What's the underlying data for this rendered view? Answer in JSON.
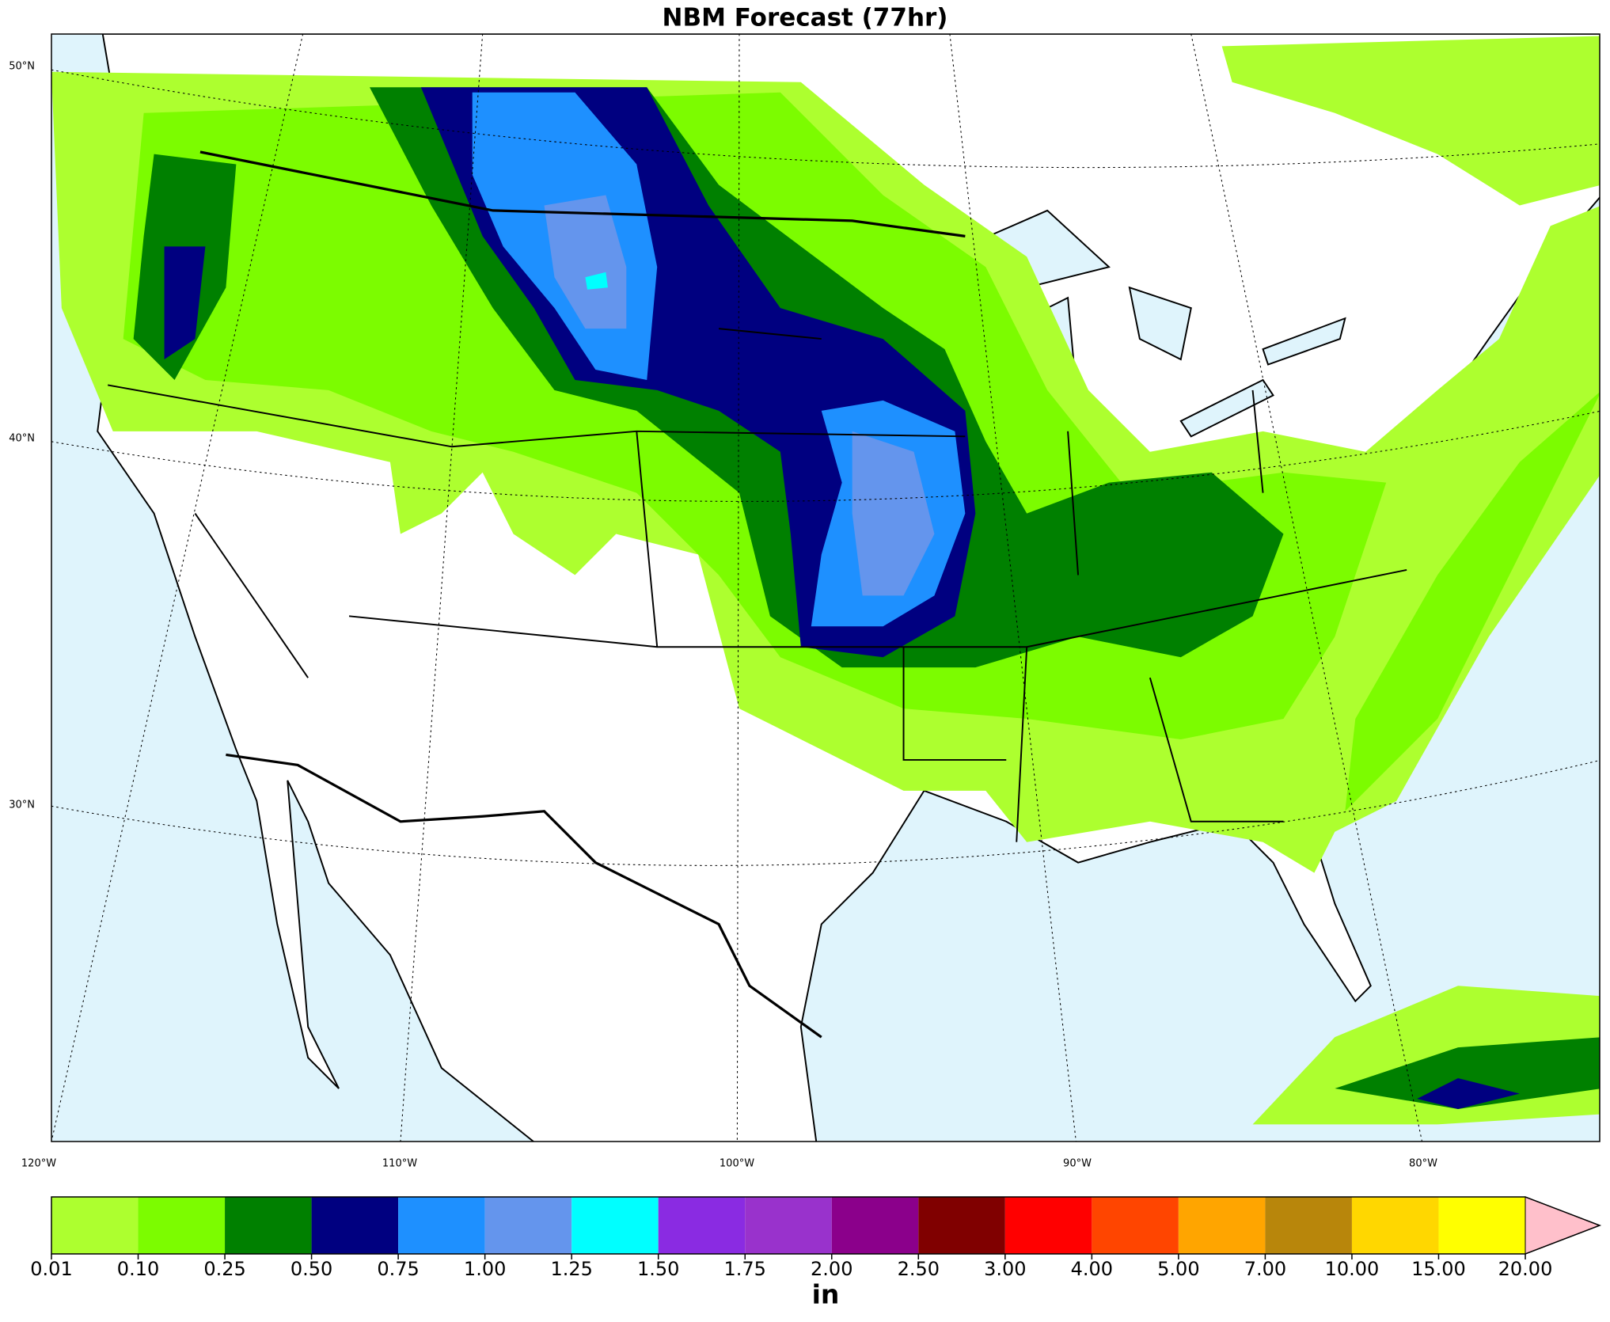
{
  "title": "NBM Forecast (77hr)",
  "map": {
    "lat_labels": [
      "50°N",
      "40°N",
      "30°N"
    ],
    "lon_labels": [
      "120°W",
      "110°W",
      "100°W",
      "90°W",
      "80°W"
    ]
  },
  "colorbar": {
    "label": "in",
    "ticks": [
      0.01,
      {
        "value": 0.1,
        "label": "0.10"
      },
      0.25,
      {
        "value": 0.5,
        "label": "0.50"
      },
      0.75,
      {
        "value": 1,
        "label": "1.00"
      },
      1.25,
      {
        "value": 1.5,
        "label": "1.50"
      },
      1.75,
      {
        "value": 2,
        "label": "2.00"
      },
      {
        "value": 2.5,
        "label": "2.50"
      },
      {
        "value": 3,
        "label": "3.00"
      },
      {
        "value": 4,
        "label": "4.00"
      },
      {
        "value": 5,
        "label": "5.00"
      },
      {
        "value": 7,
        "label": "7.00"
      },
      {
        "value": 10,
        "label": "10.00"
      },
      {
        "value": 15,
        "label": "15.00"
      },
      {
        "value": 20,
        "label": "20.00"
      }
    ],
    "colors": [
      "#adff2f",
      "#7cfc00",
      "#008000",
      "#000080",
      "#1e90ff",
      "#6495ed",
      "#00ffff",
      "#8a2be2",
      "#9932cc",
      "#8b008b",
      "#800000",
      "#ff0000",
      "#ff4500",
      "#ffa500",
      "#b8860b",
      "#ffd700",
      "#ffff00"
    ],
    "extend_color": "#ffc0cb"
  }
}
